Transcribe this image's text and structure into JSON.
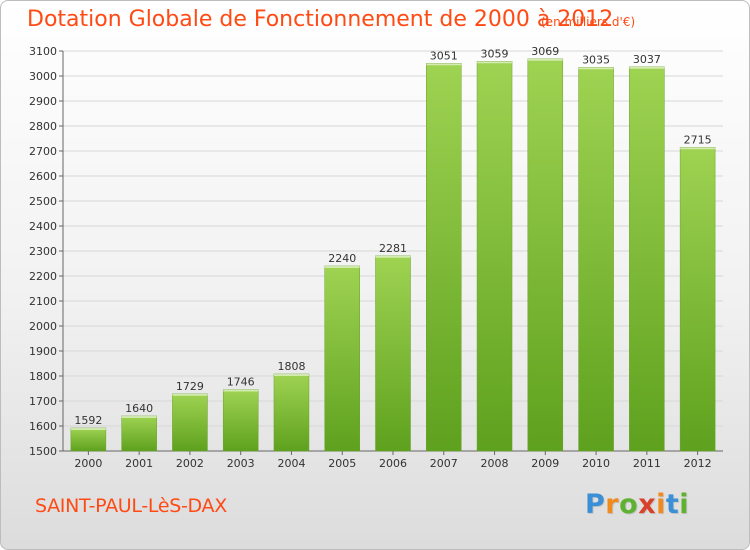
{
  "title": "Dotation Globale de Fonctionnement de 2000 à 2012",
  "subtitle": "(en milliers d'€)",
  "commune": "SAINT-PAUL-LèS-DAX",
  "brand": {
    "text": "Proxiti",
    "letter_colors": [
      "#3a8fd6",
      "#f08a1c",
      "#5fb231",
      "#d9412a",
      "#f08a1c",
      "#3a8fd6",
      "#5fb231"
    ]
  },
  "colors": {
    "bar_top": "#9fd352",
    "bar_bottom": "#5ea11e",
    "title": "#ff4a14"
  },
  "chart_data": {
    "type": "bar",
    "title": "Dotation Globale de Fonctionnement de 2000 à 2012",
    "subtitle": "(en milliers d'€)",
    "categories": [
      "2000",
      "2001",
      "2002",
      "2003",
      "2004",
      "2005",
      "2006",
      "2007",
      "2008",
      "2009",
      "2010",
      "2011",
      "2012"
    ],
    "values": [
      1592,
      1640,
      1729,
      1746,
      1808,
      2240,
      2281,
      3051,
      3059,
      3069,
      3035,
      3037,
      2715
    ],
    "xlabel": "",
    "ylabel": "",
    "ylim": [
      1500,
      3100
    ],
    "yticks": [
      1500,
      1600,
      1700,
      1800,
      1900,
      2000,
      2100,
      2200,
      2300,
      2400,
      2500,
      2600,
      2700,
      2800,
      2900,
      3000,
      3100
    ],
    "grid": true,
    "data_labels": true,
    "legend": "none"
  }
}
